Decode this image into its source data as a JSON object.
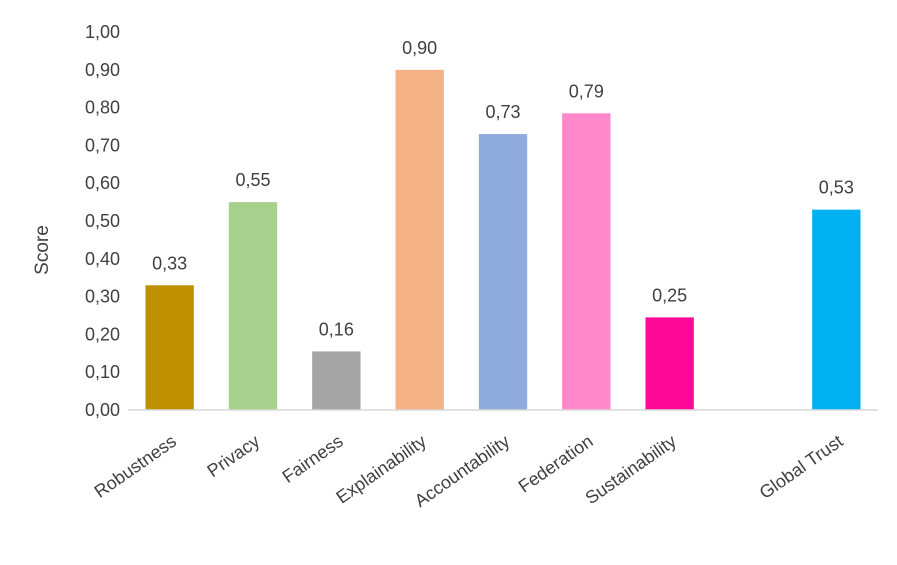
{
  "chart_data": {
    "type": "bar",
    "title": "",
    "xlabel": "",
    "ylabel": "Score",
    "ylim": [
      0,
      1
    ],
    "yticks": [
      "0,00",
      "0,10",
      "0,20",
      "0,30",
      "0,40",
      "0,50",
      "0,60",
      "0,70",
      "0,80",
      "0,90",
      "1,00"
    ],
    "grid": false,
    "legend": "none",
    "categories": [
      "Robustness",
      "Privacy",
      "Fairness",
      "Explainability",
      "Accountability",
      "Federation",
      "Sustainability",
      "",
      "Global Trust"
    ],
    "values": [
      0.33,
      0.55,
      0.155,
      0.9,
      0.73,
      0.785,
      0.245,
      null,
      0.53
    ],
    "data_labels": [
      "0,33",
      "0,55",
      "0,16",
      "0,90",
      "0,73",
      "0,79",
      "0,25",
      "",
      "0,53"
    ],
    "colors": [
      "#BF9000",
      "#A9D18E",
      "#A5A5A5",
      "#F4B183",
      "#8FAADC",
      "#FF87CB",
      "#FF0A98",
      "",
      "#00B0F0"
    ]
  }
}
